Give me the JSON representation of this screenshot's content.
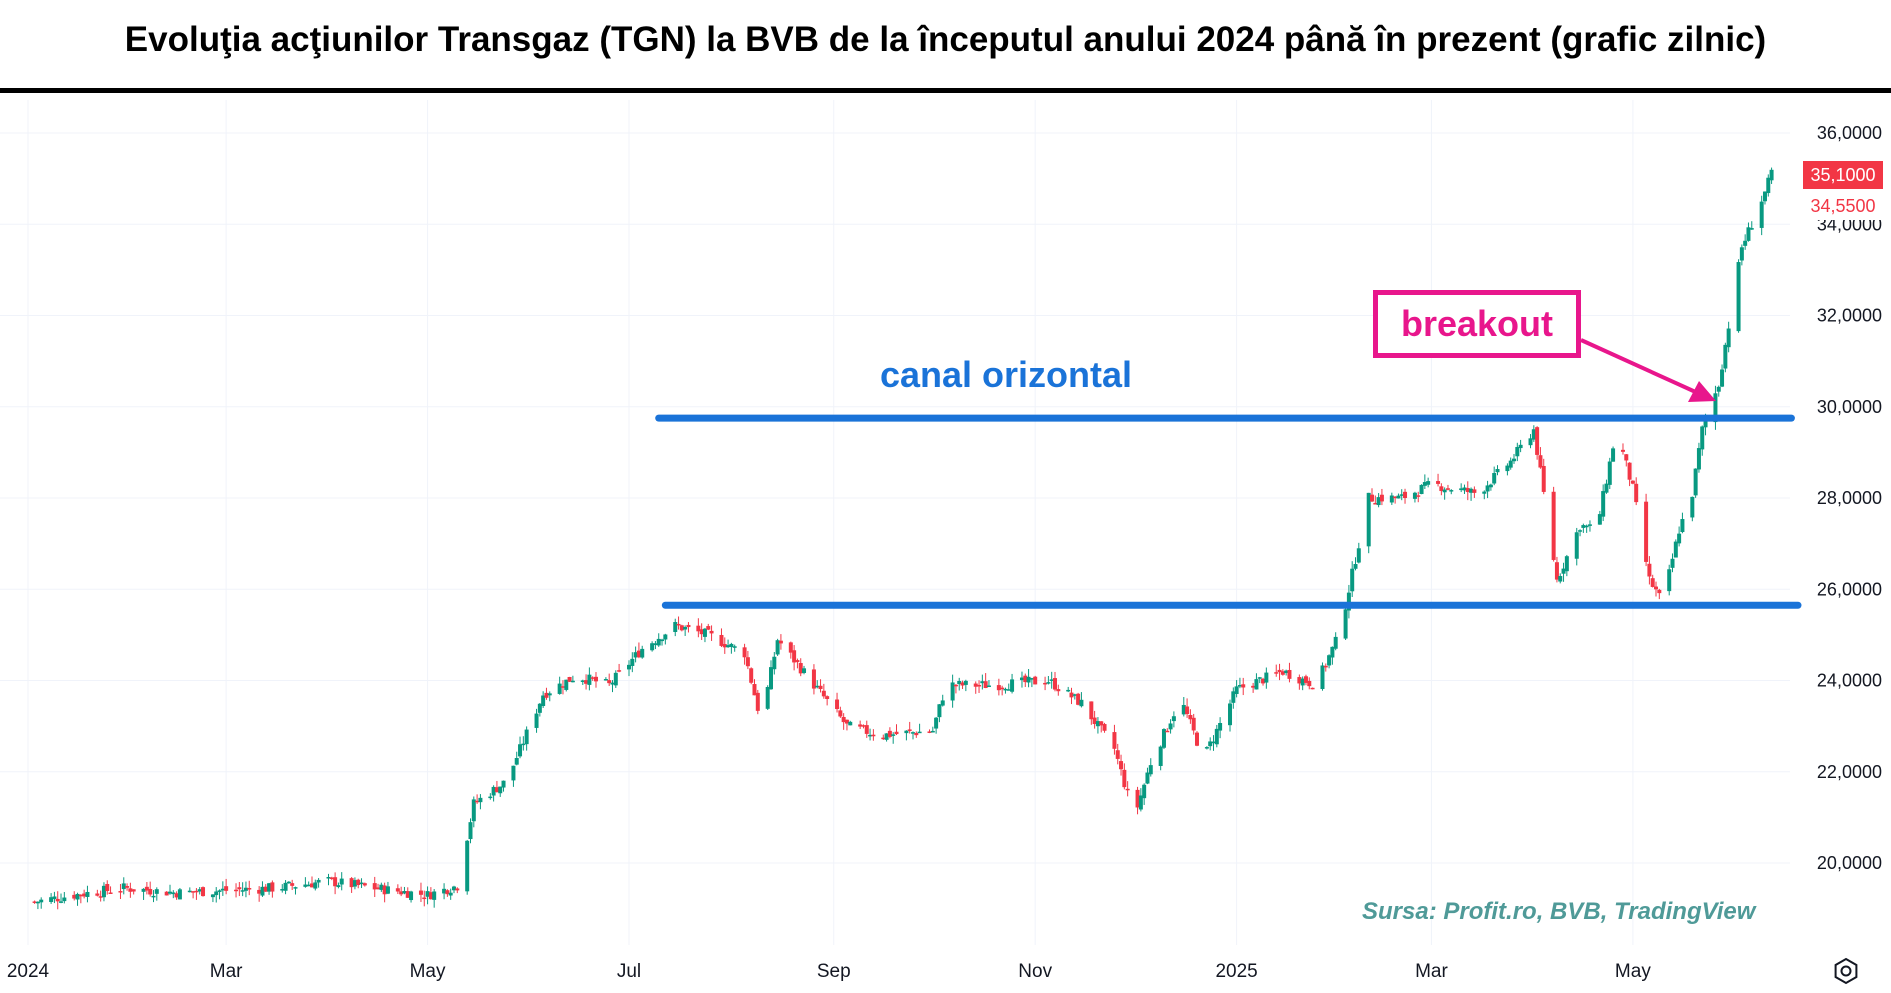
{
  "title": "Evoluţia acţiunilor Transgaz (TGN) la BVB de la începutul anului 2024 până în prezent (grafic zilnic)",
  "source": "Sursa: Profit.ro, BVB, TradingView",
  "annotations": {
    "channel_label": "canal orizontal",
    "breakout_label": "breakout",
    "channel_color": "#1a73d8",
    "breakout_color": "#e8168c"
  },
  "price_tags": {
    "last": "35,1000",
    "previous": "34,5500",
    "last_color": "#f23645"
  },
  "colors": {
    "up": "#089981",
    "down": "#f23645"
  },
  "chart_data": {
    "type": "candlestick",
    "title": "Evoluţia acţiunilor Transgaz (TGN) la BVB de la începutul anului 2024 până în prezent (grafic zilnic)",
    "x_range": [
      "2024-01-01",
      "2025-06-20"
    ],
    "ylim": [
      19000,
      36500
    ],
    "y_ticks": [
      {
        "value": 20000,
        "label": "20,0000"
      },
      {
        "value": 22000,
        "label": "22,0000"
      },
      {
        "value": 24000,
        "label": "24,0000"
      },
      {
        "value": 26000,
        "label": "26,0000"
      },
      {
        "value": 28000,
        "label": "28,0000"
      },
      {
        "value": 30000,
        "label": "30,0000"
      },
      {
        "value": 32000,
        "label": "32,0000"
      },
      {
        "value": 34000,
        "label": "34,0000"
      },
      {
        "value": 36000,
        "label": "36,0000"
      }
    ],
    "x_ticks": [
      {
        "date": "2024-01-01",
        "label": "2024"
      },
      {
        "date": "2024-03-01",
        "label": "Mar"
      },
      {
        "date": "2024-05-01",
        "label": "May"
      },
      {
        "date": "2024-07-01",
        "label": "Jul"
      },
      {
        "date": "2024-09-01",
        "label": "Sep"
      },
      {
        "date": "2024-11-01",
        "label": "Nov"
      },
      {
        "date": "2025-01-01",
        "label": "2025"
      },
      {
        "date": "2025-03-01",
        "label": "Mar"
      },
      {
        "date": "2025-05-01",
        "label": "May"
      }
    ],
    "channel": [
      {
        "name": "upper",
        "value": 29750,
        "from": "2024-07-10",
        "to": "2025-06-18"
      },
      {
        "name": "lower",
        "value": 25650,
        "from": "2024-07-12",
        "to": "2025-06-20"
      }
    ],
    "series": [
      {
        "name": "close",
        "points": [
          [
            "2024-01-03",
            19150
          ],
          [
            "2024-01-15",
            19300
          ],
          [
            "2024-01-30",
            19450
          ],
          [
            "2024-02-15",
            19350
          ],
          [
            "2024-03-01",
            19400
          ],
          [
            "2024-03-15",
            19450
          ],
          [
            "2024-04-01",
            19600
          ],
          [
            "2024-04-15",
            19450
          ],
          [
            "2024-05-01",
            19300
          ],
          [
            "2024-05-10",
            19500
          ],
          [
            "2024-05-15",
            21300
          ],
          [
            "2024-05-25",
            21800
          ],
          [
            "2024-06-05",
            23700
          ],
          [
            "2024-06-15",
            24100
          ],
          [
            "2024-06-25",
            23900
          ],
          [
            "2024-07-05",
            24700
          ],
          [
            "2024-07-15",
            25200
          ],
          [
            "2024-07-25",
            25000
          ],
          [
            "2024-08-05",
            24600
          ],
          [
            "2024-08-10",
            23100
          ],
          [
            "2024-08-15",
            24900
          ],
          [
            "2024-08-25",
            24000
          ],
          [
            "2024-09-05",
            23000
          ],
          [
            "2024-09-15",
            22800
          ],
          [
            "2024-10-01",
            22900
          ],
          [
            "2024-10-05",
            23900
          ],
          [
            "2024-10-20",
            23900
          ],
          [
            "2024-11-05",
            24000
          ],
          [
            "2024-11-15",
            23500
          ],
          [
            "2024-11-25",
            22500
          ],
          [
            "2024-12-01",
            21000
          ],
          [
            "2024-12-06",
            22200
          ],
          [
            "2024-12-15",
            23600
          ],
          [
            "2024-12-22",
            22300
          ],
          [
            "2025-01-01",
            23800
          ],
          [
            "2025-01-15",
            24200
          ],
          [
            "2025-01-25",
            23900
          ],
          [
            "2025-02-01",
            25000
          ],
          [
            "2025-02-10",
            28000
          ],
          [
            "2025-02-20",
            28000
          ],
          [
            "2025-03-01",
            28300
          ],
          [
            "2025-03-15",
            28100
          ],
          [
            "2025-03-25",
            28800
          ],
          [
            "2025-04-01",
            29500
          ],
          [
            "2025-04-08",
            26200
          ],
          [
            "2025-04-15",
            27400
          ],
          [
            "2025-04-20",
            27300
          ],
          [
            "2025-04-26",
            29500
          ],
          [
            "2025-05-01",
            28200
          ],
          [
            "2025-05-06",
            26200
          ],
          [
            "2025-05-10",
            25700
          ],
          [
            "2025-05-15",
            27300
          ],
          [
            "2025-05-19",
            28100
          ],
          [
            "2025-05-22",
            29500
          ],
          [
            "2025-05-27",
            30500
          ],
          [
            "2025-06-03",
            33500
          ],
          [
            "2025-06-10",
            34700
          ],
          [
            "2025-06-12",
            35100
          ]
        ]
      }
    ],
    "xlabel": "",
    "ylabel": "",
    "grid": true
  }
}
